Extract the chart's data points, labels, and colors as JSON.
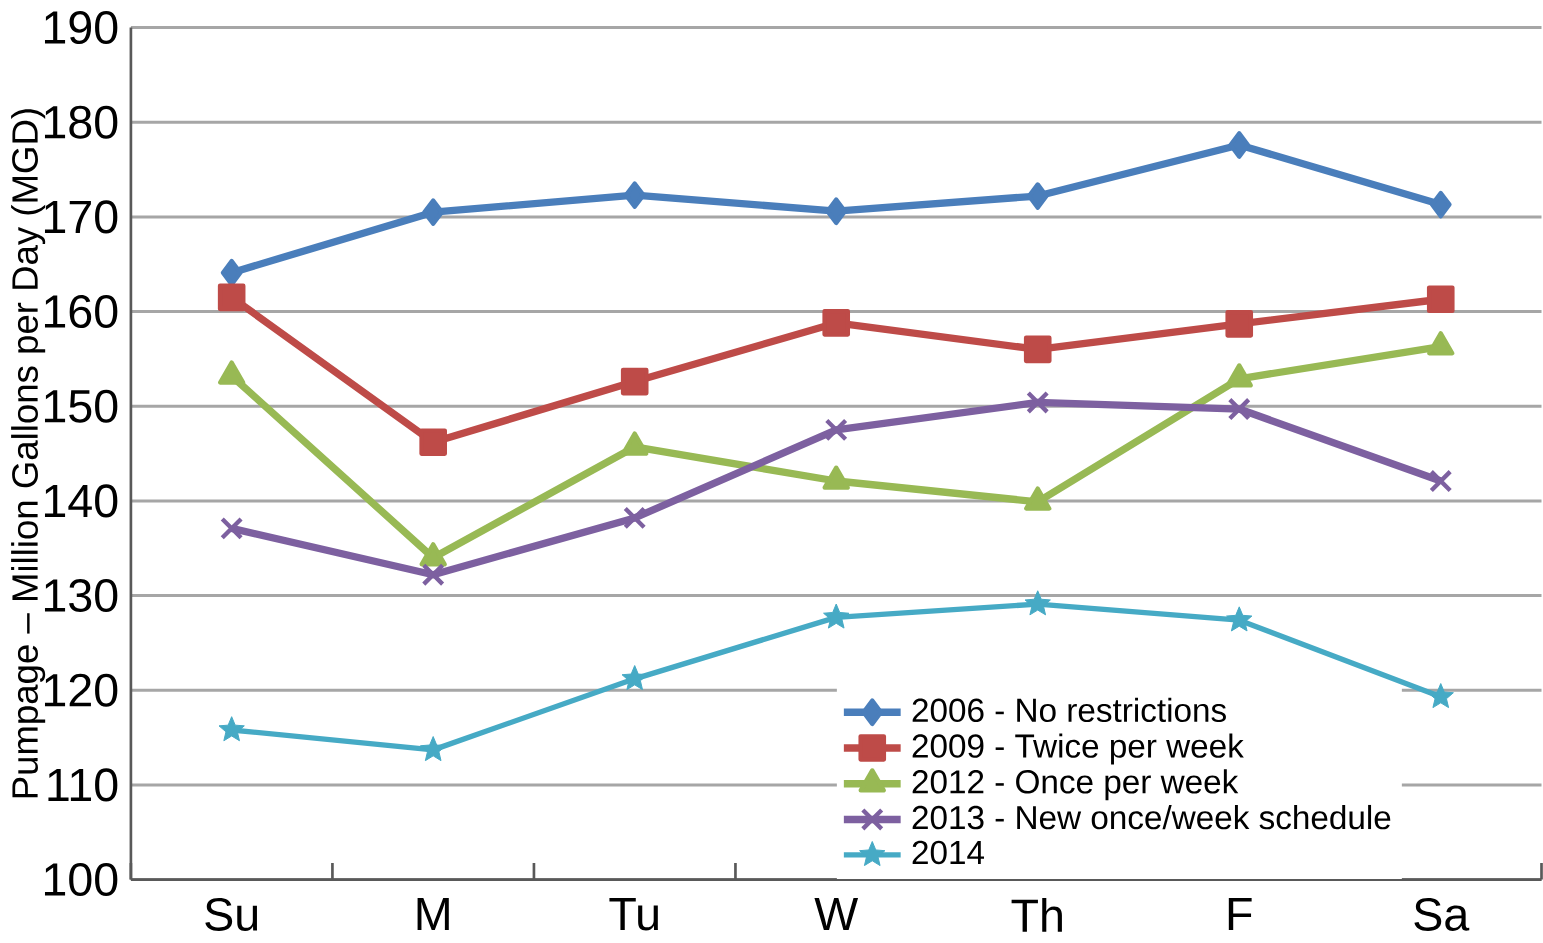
{
  "chart_data": {
    "type": "line",
    "ylabel": "Pumpage – Million Gallons per Day (MGD)",
    "categories": [
      "Su",
      "M",
      "Tu",
      "W",
      "Th",
      "F",
      "Sa"
    ],
    "ylim": [
      100,
      190
    ],
    "yticks": [
      100,
      110,
      120,
      130,
      140,
      150,
      160,
      170,
      180,
      190
    ],
    "grid": "y",
    "legend": "bottom right",
    "series": [
      {
        "name": "2006 - No restrictions",
        "color": "#4a7ebb",
        "marker": "diamond",
        "values": [
          164.1,
          170.5,
          172.3,
          170.6,
          172.2,
          177.6,
          171.3
        ]
      },
      {
        "name": "2009 - Twice per week",
        "color": "#be4b48",
        "marker": "square",
        "values": [
          161.5,
          146.2,
          152.6,
          158.8,
          156.0,
          158.7,
          161.3
        ]
      },
      {
        "name": "2012 - Once per week",
        "color": "#98b954",
        "marker": "triangle",
        "values": [
          153.2,
          134.0,
          145.7,
          142.1,
          139.9,
          152.9,
          156.3
        ]
      },
      {
        "name": "2013 - New once/week schedule",
        "color": "#7d60a0",
        "marker": "cross",
        "values": [
          137.1,
          132.2,
          138.2,
          147.5,
          150.4,
          149.7,
          142.1
        ]
      },
      {
        "name": "2014",
        "color": "#46aac5",
        "marker": "star",
        "values": [
          115.8,
          113.7,
          121.2,
          127.7,
          129.1,
          127.4,
          119.3
        ]
      }
    ]
  }
}
